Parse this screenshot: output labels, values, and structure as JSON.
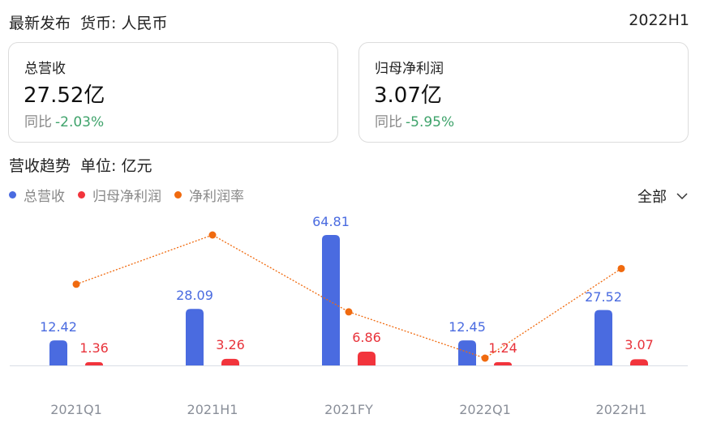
{
  "header": {
    "title": "最新发布",
    "currency": "货币: 人民币",
    "period": "2022H1"
  },
  "cards": [
    {
      "label": "总营收",
      "value": "27.52亿",
      "yoy_label": "同比",
      "yoy_change": "-2.03%"
    },
    {
      "label": "归母净利润",
      "value": "3.07亿",
      "yoy_label": "同比",
      "yoy_change": "-5.95%"
    }
  ],
  "trend": {
    "title": "营收趋势",
    "unit": "单位: 亿元",
    "filter_label": "全部",
    "filter_icon": "chevron-down-icon"
  },
  "legend": [
    {
      "label": "总营收",
      "color": "#4a6be0"
    },
    {
      "label": "归母净利润",
      "color": "#f2343c"
    },
    {
      "label": "净利润率",
      "color": "#f06a0f"
    }
  ],
  "colors": {
    "revenue": "#4a6be0",
    "net_profit": "#f2343c",
    "margin": "#f06a0f",
    "positive_change": "#3fa36b",
    "axis": "#d9dde5"
  },
  "chart_data": {
    "type": "bar",
    "title": "营收趋势",
    "subtitle": "单位: 亿元",
    "xlabel": "",
    "ylabel": "亿元",
    "categories": [
      "2021Q1",
      "2021H1",
      "2021FY",
      "2022Q1",
      "2022H1"
    ],
    "series": [
      {
        "name": "总营收",
        "type": "bar",
        "color": "#4a6be0",
        "values": [
          12.42,
          28.09,
          64.81,
          12.45,
          27.52
        ]
      },
      {
        "name": "归母净利润",
        "type": "bar",
        "color": "#f2343c",
        "values": [
          1.36,
          3.26,
          6.86,
          1.24,
          3.07
        ]
      },
      {
        "name": "净利润率",
        "type": "line",
        "color": "#f06a0f",
        "style": "dotted",
        "unit": "%",
        "values": [
          10.95,
          11.61,
          10.58,
          9.96,
          11.16
        ]
      }
    ],
    "ylim": [
      0,
      65
    ],
    "grid": false,
    "legend_position": "top-left",
    "value_labels": {
      "总营收": [
        "12.42",
        "28.09",
        "64.81",
        "12.45",
        "27.52"
      ],
      "归母净利润": [
        "1.36",
        "3.26",
        "6.86",
        "1.24",
        "3.07"
      ]
    }
  }
}
